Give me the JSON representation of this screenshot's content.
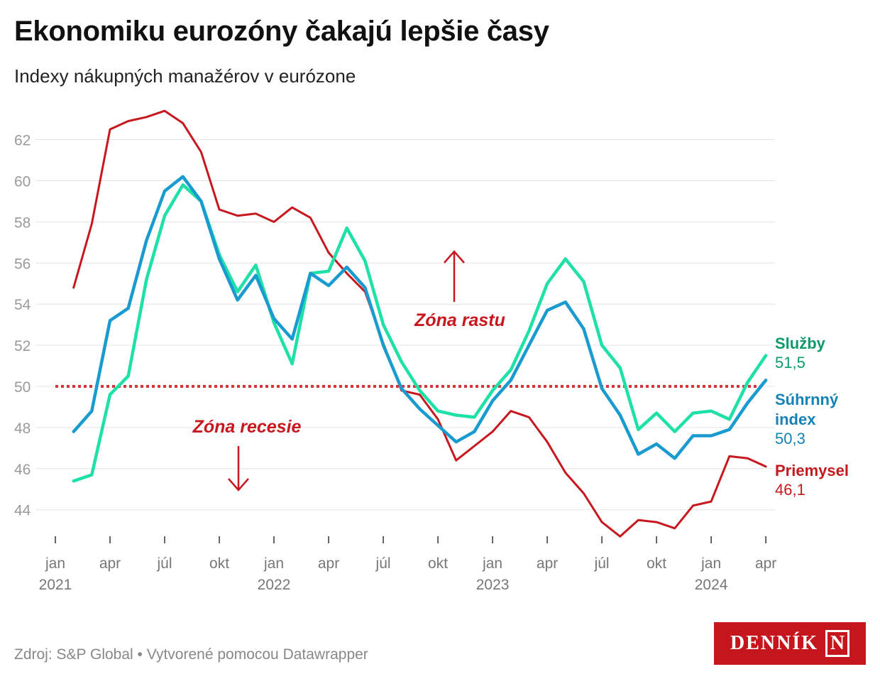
{
  "title": "Ekonomiku eurozóny čakajú lepšie časy",
  "subtitle": "Indexy nákupných manažérov v eurózone",
  "footer": {
    "source": "Zdroj: S&P Global",
    "separator": " • ",
    "credit": "Vytvorené pomocou Datawrapper"
  },
  "logo": {
    "text": "DENNÍK",
    "mark": "N"
  },
  "chart_data": {
    "type": "line",
    "title": "Ekonomiku eurozóny čakajú lepšie časy",
    "xlabel": "",
    "ylabel": "",
    "ylim": [
      43,
      63.5
    ],
    "yticks": [
      44,
      46,
      48,
      50,
      52,
      54,
      56,
      58,
      60,
      62
    ],
    "x_start": "2021-01",
    "x_ticks": [
      {
        "m": 0,
        "label": "jan",
        "year": "2021"
      },
      {
        "m": 3,
        "label": "apr"
      },
      {
        "m": 6,
        "label": "júl"
      },
      {
        "m": 9,
        "label": "okt"
      },
      {
        "m": 12,
        "label": "jan",
        "year": "2022"
      },
      {
        "m": 15,
        "label": "apr"
      },
      {
        "m": 18,
        "label": "júl"
      },
      {
        "m": 21,
        "label": "okt"
      },
      {
        "m": 24,
        "label": "jan",
        "year": "2023"
      },
      {
        "m": 27,
        "label": "apr"
      },
      {
        "m": 30,
        "label": "júl"
      },
      {
        "m": 33,
        "label": "okt"
      },
      {
        "m": 36,
        "label": "jan",
        "year": "2024"
      },
      {
        "m": 39,
        "label": "apr"
      }
    ],
    "reference_line": {
      "value": 50,
      "color": "#d0373c"
    },
    "annotations": [
      {
        "text": "Zóna rastu",
        "direction": "up"
      },
      {
        "text": "Zóna recesie",
        "direction": "down"
      }
    ],
    "series": [
      {
        "name": "Priemysel",
        "label": "Priemysel",
        "last": "46,1",
        "color": "#c8181f",
        "label_color": "#c41a1f",
        "values": [
          54.8,
          57.9,
          62.5,
          62.9,
          63.1,
          63.4,
          62.8,
          61.4,
          58.6,
          58.3,
          58.4,
          58.0,
          58.7,
          58.2,
          56.5,
          55.5,
          54.6,
          52.1,
          49.8,
          49.6,
          48.4,
          46.4,
          47.1,
          47.8,
          48.8,
          48.5,
          47.3,
          45.8,
          44.8,
          43.4,
          42.7,
          43.5,
          43.4,
          43.1,
          44.2,
          44.4,
          46.6,
          46.5,
          46.1
        ]
      },
      {
        "name": "Služby",
        "label": "Služby",
        "last": "51,5",
        "color": "#1fe0a6",
        "label_color": "#0d9a68",
        "values": [
          45.4,
          45.7,
          49.6,
          50.5,
          55.2,
          58.3,
          59.8,
          59.0,
          56.4,
          54.6,
          55.9,
          53.1,
          51.1,
          55.5,
          55.6,
          57.7,
          56.1,
          53.0,
          51.2,
          49.8,
          48.8,
          48.6,
          48.5,
          49.8,
          50.8,
          52.7,
          55.0,
          56.2,
          55.1,
          52.0,
          50.9,
          47.9,
          48.7,
          47.8,
          48.7,
          48.8,
          48.4,
          50.2,
          51.5
        ]
      },
      {
        "name": "Súhrnný index",
        "label": "Súhrnný index",
        "last": "50,3",
        "color": "#1a9bd0",
        "label_color": "#1582b5",
        "values": [
          47.8,
          48.8,
          53.2,
          53.8,
          57.1,
          59.5,
          60.2,
          59.0,
          56.2,
          54.2,
          55.4,
          53.3,
          52.3,
          55.5,
          54.9,
          55.8,
          54.8,
          52.0,
          49.9,
          48.9,
          48.1,
          47.3,
          47.8,
          49.3,
          50.3,
          52.0,
          53.7,
          54.1,
          52.8,
          49.9,
          48.6,
          46.7,
          47.2,
          46.5,
          47.6,
          47.6,
          47.9,
          49.2,
          50.3
        ]
      }
    ]
  }
}
